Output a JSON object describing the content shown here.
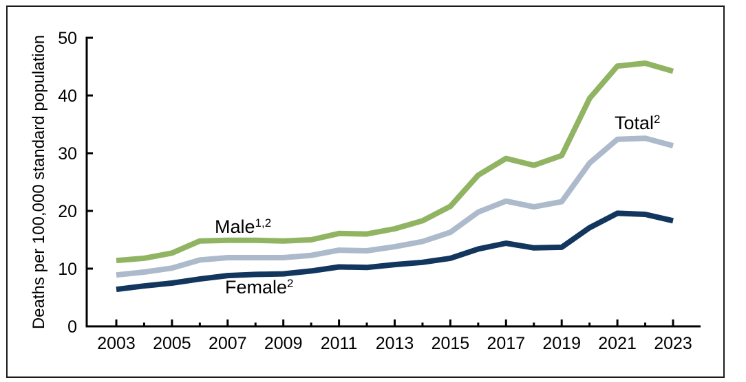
{
  "figure": {
    "title": "",
    "border_color": "#1a1a1a",
    "background": "#ffffff"
  },
  "chart_data": {
    "type": "line",
    "title": "",
    "xlabel": "",
    "ylabel": "Deaths per 100,000 standard population",
    "x": [
      2003,
      2004,
      2005,
      2006,
      2007,
      2008,
      2009,
      2010,
      2011,
      2012,
      2013,
      2014,
      2015,
      2016,
      2017,
      2018,
      2019,
      2020,
      2021,
      2022,
      2023
    ],
    "x_tick_labels": [
      "2003",
      "2005",
      "2007",
      "2009",
      "2011",
      "2013",
      "2015",
      "2017",
      "2019",
      "2021",
      "2023"
    ],
    "ylim": [
      0,
      50
    ],
    "y_ticks": [
      0,
      10,
      20,
      30,
      40,
      50
    ],
    "grid": false,
    "legend_position": "inline-annotations",
    "series": [
      {
        "name": "Male",
        "superscript": "1,2",
        "color": "#91B463",
        "values": [
          11.4,
          11.8,
          12.7,
          14.8,
          14.9,
          14.9,
          14.8,
          15.0,
          16.1,
          16.0,
          16.9,
          18.3,
          20.8,
          26.2,
          29.1,
          27.9,
          29.6,
          39.5,
          45.1,
          45.6,
          44.2
        ]
      },
      {
        "name": "Total",
        "superscript": "2",
        "color": "#ACBACB",
        "values": [
          8.9,
          9.4,
          10.1,
          11.5,
          11.9,
          11.9,
          11.9,
          12.3,
          13.2,
          13.1,
          13.8,
          14.7,
          16.3,
          19.8,
          21.7,
          20.7,
          21.6,
          28.3,
          32.4,
          32.6,
          31.3
        ]
      },
      {
        "name": "Female",
        "superscript": "2",
        "color": "#12365E",
        "values": [
          6.4,
          7.0,
          7.5,
          8.2,
          8.8,
          9.0,
          9.1,
          9.6,
          10.3,
          10.2,
          10.7,
          11.1,
          11.8,
          13.4,
          14.4,
          13.6,
          13.7,
          17.1,
          19.6,
          19.4,
          18.3
        ]
      }
    ]
  }
}
